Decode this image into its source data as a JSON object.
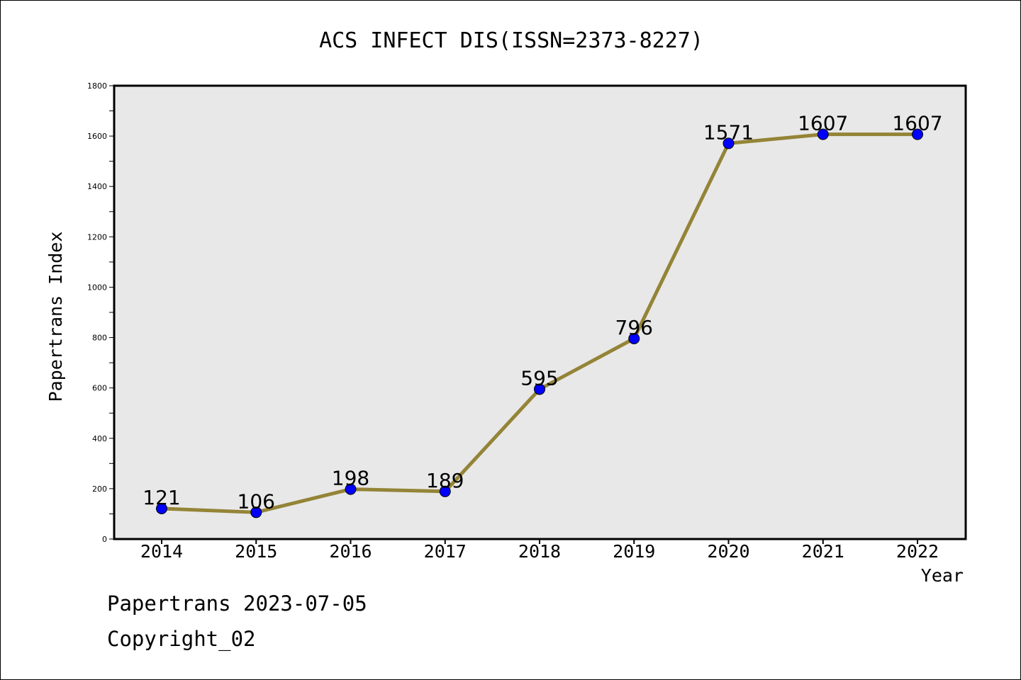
{
  "chart_data": {
    "type": "line",
    "title": "ACS INFECT DIS(ISSN=2373-8227)",
    "xlabel": "Year",
    "ylabel": "Papertrans Index",
    "categories": [
      "2014",
      "2015",
      "2016",
      "2017",
      "2018",
      "2019",
      "2020",
      "2021",
      "2022"
    ],
    "values": [
      121,
      106,
      198,
      189,
      595,
      796,
      1571,
      1607,
      1607
    ],
    "point_labels": [
      "121",
      "106",
      "198",
      "189",
      "595",
      "796",
      "1571",
      "1607",
      "1607"
    ],
    "ylim": [
      0,
      1800
    ],
    "yticks": [
      0,
      200,
      400,
      600,
      800,
      1000,
      1200,
      1400,
      1600,
      1800
    ],
    "grid": false,
    "colors": {
      "line": "#948437",
      "marker": "#0000ff",
      "plot_background": "#e8e8e8"
    }
  },
  "footer": {
    "line1": "Papertrans 2023-07-05",
    "line2": "Copyright_02"
  }
}
